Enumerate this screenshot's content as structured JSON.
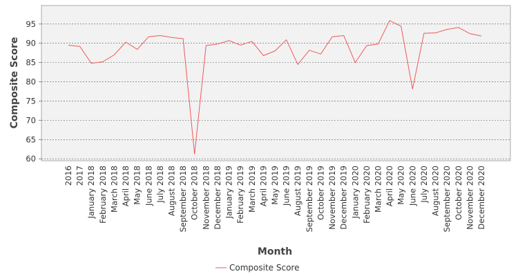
{
  "chart_data": {
    "type": "line",
    "x_label": "Month",
    "y_label": "Composite Score",
    "categories": [
      "2016",
      "2017",
      "January 2018",
      "February 2018",
      "March 2018",
      "April 2018",
      "May 2018",
      "June 2018",
      "July 2018",
      "August 2018",
      "September 2018",
      "October 2018",
      "November 2018",
      "December 2018",
      "January 2019",
      "February 2019",
      "March 2019",
      "April 2019",
      "May 2019",
      "June 2019",
      "August 2019",
      "September 2019",
      "October 2019",
      "November 2019",
      "December 2019",
      "January 2020",
      "February 2020",
      "March 2020",
      "April 2020",
      "May 2020",
      "June 2020",
      "July 2020",
      "August 2020",
      "September 2020",
      "October 2020",
      "November 2020",
      "December 2020"
    ],
    "series": [
      {
        "name": "Composite Score",
        "color": "#f25757",
        "values": [
          89.5,
          89.2,
          84.8,
          85.2,
          87.0,
          90.3,
          88.4,
          91.7,
          92.0,
          91.5,
          91.2,
          61.2,
          89.4,
          89.8,
          90.7,
          89.5,
          90.5,
          86.8,
          88.0,
          90.9,
          84.5,
          88.2,
          87.2,
          91.7,
          92.0,
          85.0,
          89.4,
          89.8,
          95.9,
          94.4,
          78.1,
          92.6,
          92.7,
          93.6,
          94.1,
          92.5,
          91.9
        ]
      }
    ],
    "ylim": [
      59.5,
      99.8
    ],
    "yticks": [
      60,
      65,
      70,
      75,
      80,
      85,
      90,
      95
    ],
    "grid": true,
    "legend": "bottom"
  }
}
